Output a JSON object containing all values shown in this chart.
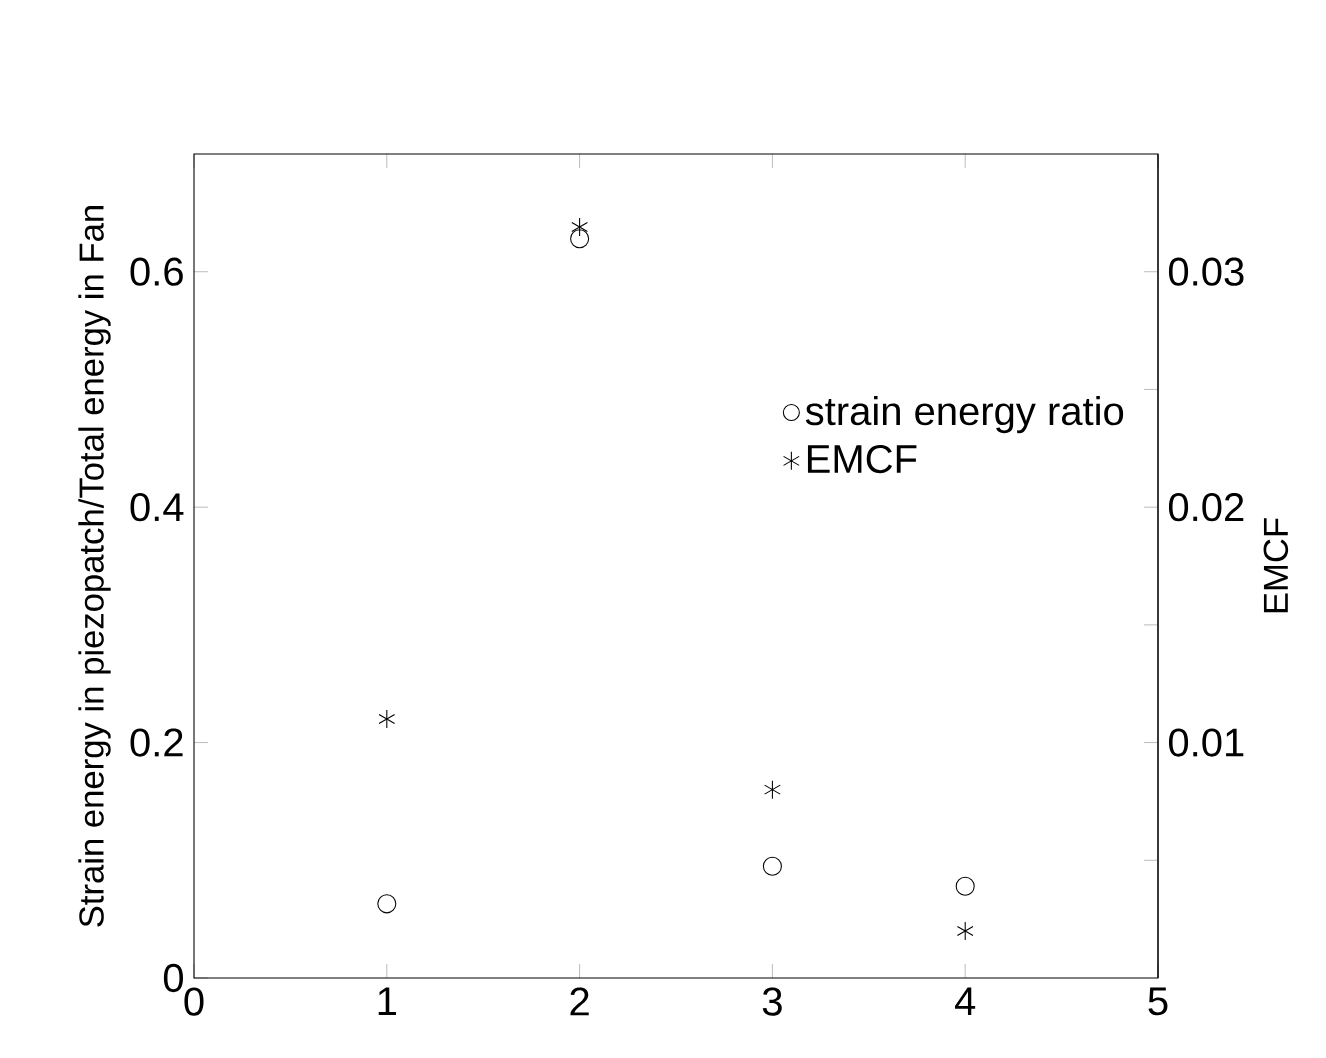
{
  "chart_data": {
    "type": "scatter",
    "xlabel": null,
    "ylabel": "Strain energy in piezopatch/Total energy in Fan",
    "y2label": "EMCF",
    "x": [
      1,
      2,
      3,
      4
    ],
    "series": [
      {
        "name": "strain energy ratio",
        "color": "#000000",
        "marker": "circle",
        "values": [
          0.063,
          0.628,
          0.095,
          0.078
        ]
      },
      {
        "name": "EMCF",
        "color": "#000000",
        "marker": "cross",
        "axis": "y2",
        "values": [
          0.011,
          0.0319,
          0.008,
          0.002
        ]
      }
    ],
    "xlim": [
      0,
      5
    ],
    "xticks": [
      0,
      1,
      2,
      3,
      4,
      5
    ],
    "ylim": [
      0,
      0.7
    ],
    "yticks": [
      0,
      0.2,
      0.4,
      0.6
    ],
    "y2lim": [
      0,
      0.035
    ],
    "y2ticks": [
      {
        "value": 0,
        "label": null
      },
      {
        "value": 0.005,
        "label": null
      },
      0.01,
      {
        "value": 0.015,
        "label": null
      },
      0.02,
      {
        "value": 0.025,
        "label": null
      },
      0.03,
      {
        "value": 0.035,
        "label": null
      }
    ],
    "grid": false,
    "legend": "top right"
  }
}
